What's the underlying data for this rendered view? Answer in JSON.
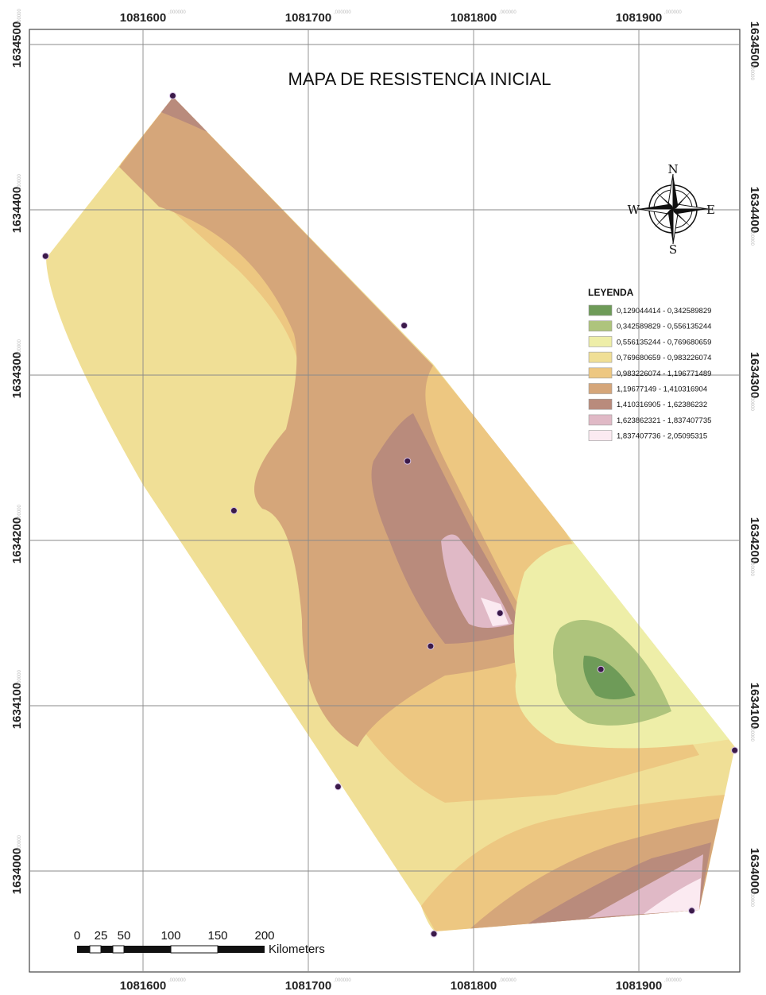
{
  "map": {
    "title": "MAPA DE  RESISTENCIA INICIAL",
    "x_ticks": [
      {
        "value": 1081600,
        "label": "1081600",
        "suffix": ",000000"
      },
      {
        "value": 1081700,
        "label": "1081700",
        "suffix": ",000000"
      },
      {
        "value": 1081800,
        "label": "1081800",
        "suffix": ",000000"
      },
      {
        "value": 1081900,
        "label": "1081900",
        "suffix": ",000000"
      }
    ],
    "y_ticks": [
      {
        "value": 1634500,
        "label": "1634500",
        "suffix": ",000000"
      },
      {
        "value": 1634400,
        "label": "1634400",
        "suffix": ",000000"
      },
      {
        "value": 1634300,
        "label": "1634300",
        "suffix": ",000000"
      },
      {
        "value": 1634200,
        "label": "1634200",
        "suffix": ",000000"
      },
      {
        "value": 1634100,
        "label": "1634100",
        "suffix": ",000000"
      },
      {
        "value": 1634000,
        "label": "1634000",
        "suffix": ",000000"
      }
    ],
    "sample_points": [
      {
        "x": 1081618,
        "y": 1634469
      },
      {
        "x": 1081541,
        "y": 1634372
      },
      {
        "x": 1081758,
        "y": 1634330
      },
      {
        "x": 1081760,
        "y": 1634248
      },
      {
        "x": 1081655,
        "y": 1634218
      },
      {
        "x": 1081816,
        "y": 1634156
      },
      {
        "x": 1081774,
        "y": 1634136
      },
      {
        "x": 1081877,
        "y": 1634122
      },
      {
        "x": 1081958,
        "y": 1634073
      },
      {
        "x": 1081718,
        "y": 1634051
      },
      {
        "x": 1081932,
        "y": 1633976
      },
      {
        "x": 1081776,
        "y": 1633962
      }
    ]
  },
  "legend": {
    "title": "LEYENDA",
    "classes": [
      {
        "label": "0,129044414 - 0,342589829",
        "color": "#6e9b58"
      },
      {
        "label": "0,342589829 - 0,556135244",
        "color": "#aec47c"
      },
      {
        "label": "0,556135244 - 0,769680659",
        "color": "#eeeea8"
      },
      {
        "label": "0,769680659 - 0,983226074",
        "color": "#f0df96"
      },
      {
        "label": "0,983226074 - 1,196771489",
        "color": "#edc781"
      },
      {
        "label": "1,19677149 - 1,410316904",
        "color": "#d5a67a"
      },
      {
        "label": "1,410316905 - 1,62386232",
        "color": "#b98b7c"
      },
      {
        "label": "1,623862321 - 1,837407735",
        "color": "#e0b9c6"
      },
      {
        "label": "1,837407736 - 2,05095315",
        "color": "#fbeaf1"
      }
    ]
  },
  "compass": {
    "north": "N",
    "south": "S",
    "east": "E",
    "west": "W"
  },
  "scale_bar": {
    "ticks": [
      "0",
      "25",
      "50",
      "100",
      "150",
      "200"
    ],
    "unit": "Kilometers"
  }
}
